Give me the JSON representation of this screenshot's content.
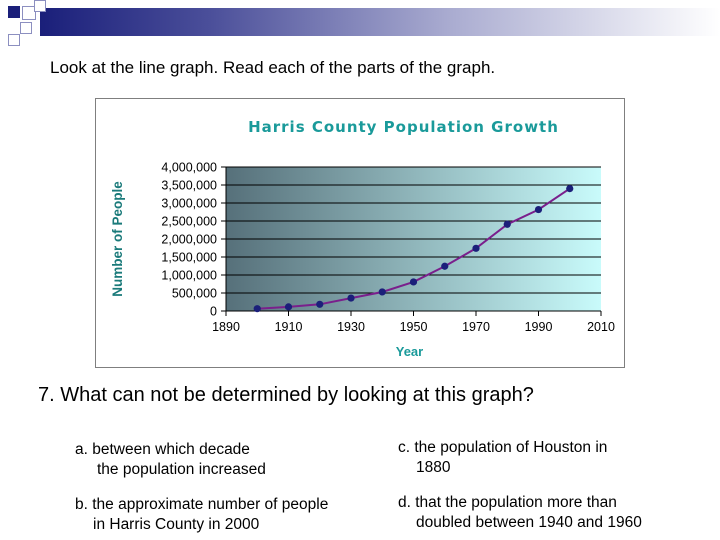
{
  "instruction": "Look at the line graph. Read each of the parts of the graph.",
  "question": "7. What can not be determined by looking at this graph?",
  "options": {
    "a": {
      "line1": "a.  between which decade",
      "line2": "the population increased"
    },
    "b": {
      "line1": "b. the approximate number of people",
      "line2": "in Harris County in 2000"
    },
    "c": {
      "line1": "c. the population of Houston in",
      "line2": "1880"
    },
    "d": {
      "line1": "d. that the population more than",
      "line2": "doubled between 1940 and 1960"
    }
  },
  "colors": {
    "title": "#1a9a9a",
    "line": "#7a1f8c",
    "marker": "#1b1f7a",
    "plot_bg_left": "#56707a",
    "plot_bg_right": "#c9fbfb"
  },
  "chart_data": {
    "type": "line",
    "title": "Harris County Population Growth",
    "xlabel": "Year",
    "ylabel": "Number of People",
    "xlim": [
      1890,
      2010
    ],
    "ylim": [
      0,
      4000000
    ],
    "x_ticks": [
      "1890",
      "1910",
      "1930",
      "1950",
      "1970",
      "1990",
      "2010"
    ],
    "y_ticks": [
      "0",
      "500,000",
      "1,000,000",
      "1,500,000",
      "2,000,000",
      "2,500,000",
      "3,000,000",
      "3,500,000",
      "4,000,000"
    ],
    "grid": true,
    "legend": "none",
    "series": [
      {
        "x": [
          1900,
          1910,
          1920,
          1930,
          1940,
          1950,
          1960,
          1970,
          1980,
          1990,
          2000
        ],
        "values": [
          64000,
          115000,
          186000,
          359000,
          529000,
          807000,
          1243000,
          1741000,
          2409000,
          2818000,
          3400000
        ]
      }
    ]
  }
}
